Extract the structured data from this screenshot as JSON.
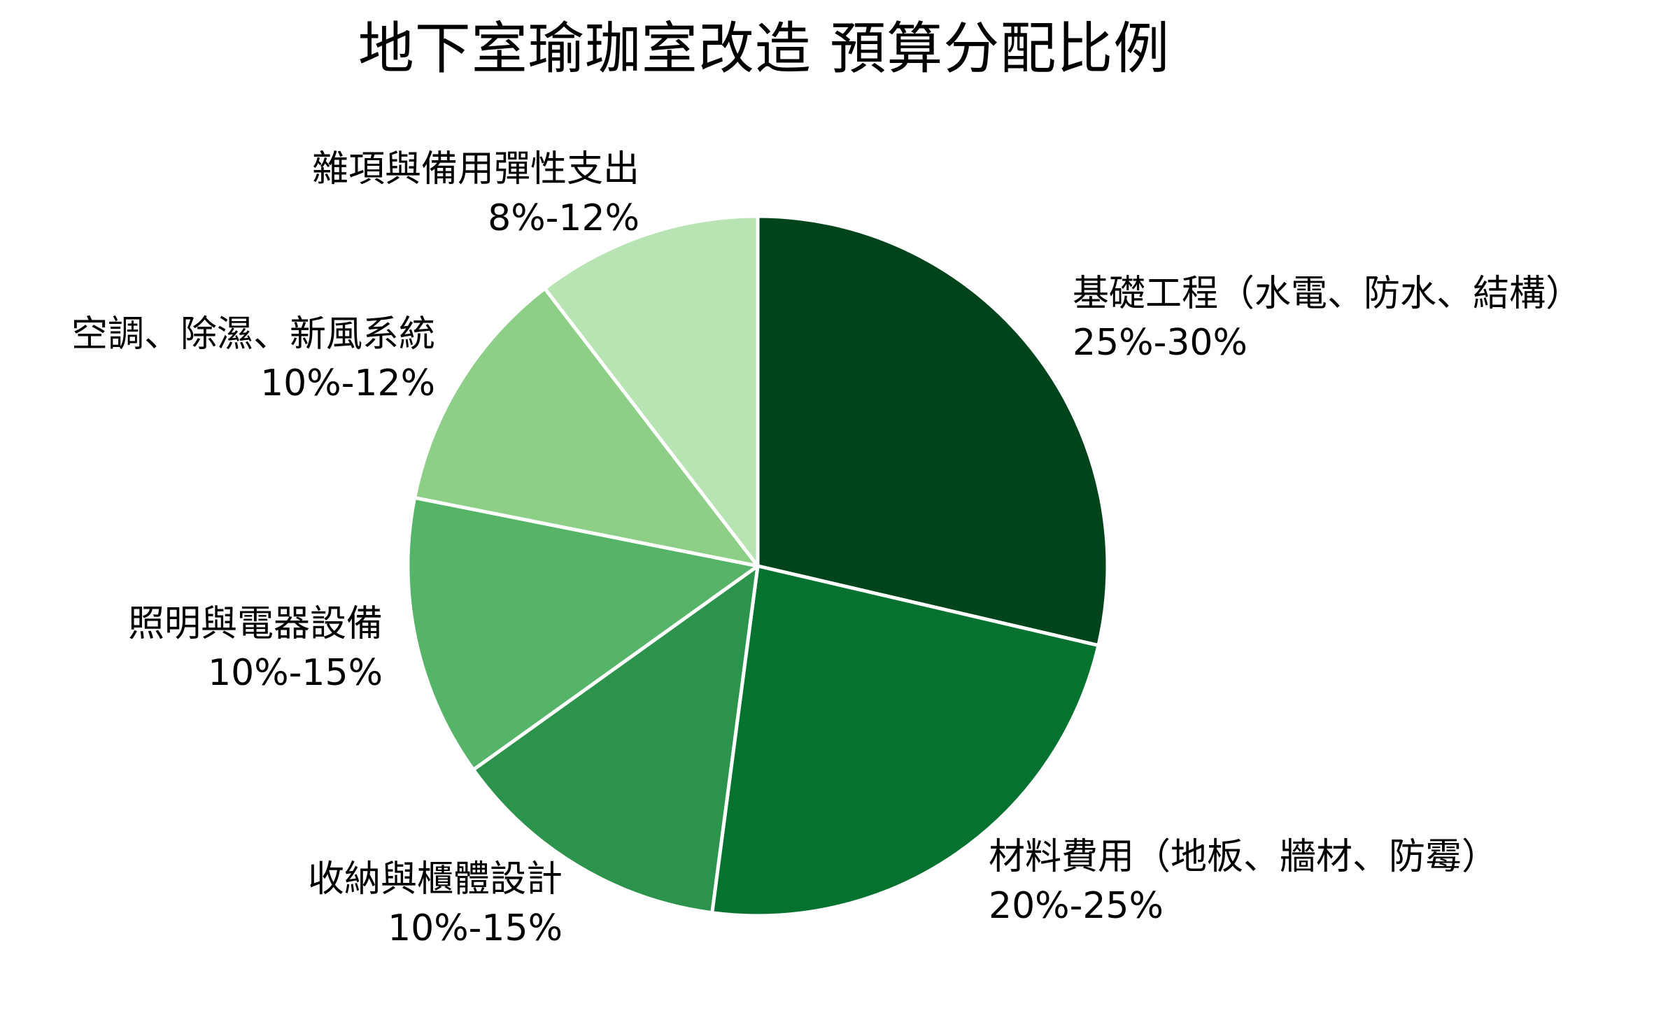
{
  "chart_data": {
    "type": "pie",
    "title": "地下室瑜珈室改造 預算分配比例",
    "start_angle_deg": 90,
    "direction": "clockwise",
    "legend": "none (labels placed outside slices)",
    "slices": [
      {
        "label": "基礎工程（水電、防水、結構）",
        "range": "25%-30%",
        "value": 27.5,
        "color": "#00441b"
      },
      {
        "label": "材料費用（地板、牆材、防霉）",
        "range": "20%-25%",
        "value": 22.5,
        "color": "#067230"
      },
      {
        "label": "收納與櫃體設計",
        "range": "10%-15%",
        "value": 12.5,
        "color": "#2b934b"
      },
      {
        "label": "照明與電器設備",
        "range": "10%-15%",
        "value": 12.5,
        "color": "#56b468"
      },
      {
        "label": "空調、除濕、新風系統",
        "range": "10%-12%",
        "value": 11,
        "color": "#8ecf88"
      },
      {
        "label": "雜項與備用彈性支出",
        "range": "8%-12%",
        "value": 10,
        "color": "#b8e3b3"
      }
    ]
  },
  "colors": {
    "background": "#ffffff",
    "slice_border": "#ffffff",
    "text": "#000000"
  }
}
